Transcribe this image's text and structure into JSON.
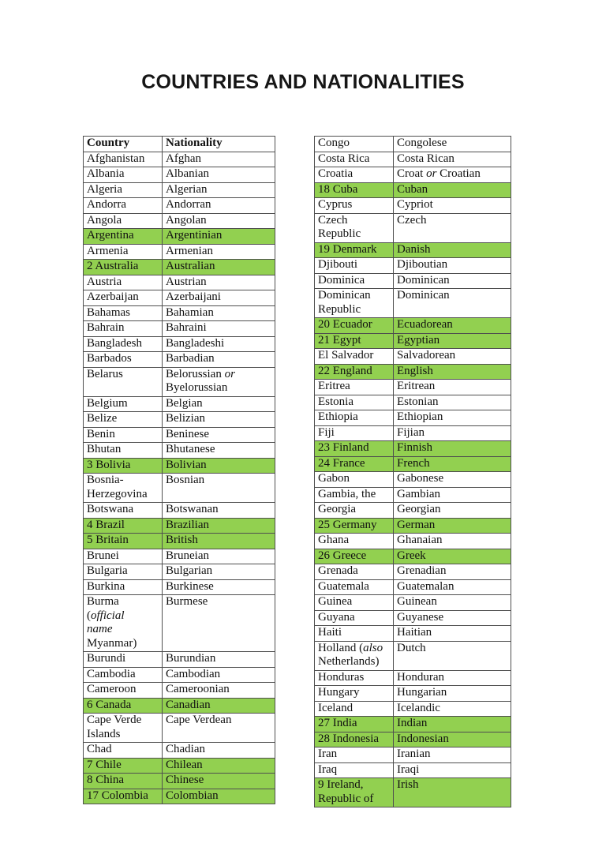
{
  "title": "COUNTRIES AND NATIONALITIES",
  "highlight_color": "#92D050",
  "left_table": {
    "headers": [
      "Country",
      "Nationality"
    ],
    "rows": [
      {
        "country": "Afghanistan",
        "nationality": "Afghan",
        "highlight": false
      },
      {
        "country": "Albania",
        "nationality": "Albanian",
        "highlight": false
      },
      {
        "country": "Algeria",
        "nationality": "Algerian",
        "highlight": false
      },
      {
        "country": "Andorra",
        "nationality": "Andorran",
        "highlight": false
      },
      {
        "country": "Angola",
        "nationality": "Angolan",
        "highlight": false
      },
      {
        "country": "Argentina",
        "nationality": "Argentinian",
        "highlight": true
      },
      {
        "country": "Armenia",
        "nationality": "Armenian",
        "highlight": false
      },
      {
        "country": "2 Australia",
        "nationality": "Australian",
        "highlight": true
      },
      {
        "country": "Austria",
        "nationality": "Austrian",
        "highlight": false
      },
      {
        "country": "Azerbaijan",
        "nationality": "Azerbaijani",
        "highlight": false
      },
      {
        "country": "Bahamas",
        "nationality": "Bahamian",
        "highlight": false
      },
      {
        "country": "Bahrain",
        "nationality": "Bahraini",
        "highlight": false
      },
      {
        "country": "Bangladesh",
        "nationality": "Bangladeshi",
        "highlight": false
      },
      {
        "country": "Barbados",
        "nationality": "Barbadian",
        "highlight": false
      },
      {
        "country": "Belarus",
        "nationality": "Belorussian *or*\nByelorussian",
        "highlight": false
      },
      {
        "country": "Belgium",
        "nationality": "Belgian",
        "highlight": false
      },
      {
        "country": "Belize",
        "nationality": "Belizian",
        "highlight": false
      },
      {
        "country": "Benin",
        "nationality": "Beninese",
        "highlight": false
      },
      {
        "country": "Bhutan",
        "nationality": "Bhutanese",
        "highlight": false
      },
      {
        "country": "3 Bolivia",
        "nationality": "Bolivian",
        "highlight": true
      },
      {
        "country": "Bosnia-\nHerzegovina",
        "nationality": "Bosnian",
        "highlight": false
      },
      {
        "country": "Botswana",
        "nationality": "Botswanan",
        "highlight": false
      },
      {
        "country": "4 Brazil",
        "nationality": "Brazilian",
        "highlight": true
      },
      {
        "country": "5 Britain",
        "nationality": "British",
        "highlight": true
      },
      {
        "country": "Brunei",
        "nationality": "Bruneian",
        "highlight": false
      },
      {
        "country": "Bulgaria",
        "nationality": "Bulgarian",
        "highlight": false
      },
      {
        "country": "Burkina",
        "nationality": "Burkinese",
        "highlight": false
      },
      {
        "country": "Burma\n(*official*\n*name*\nMyanmar)",
        "nationality": "Burmese",
        "highlight": false
      },
      {
        "country": "Burundi",
        "nationality": "Burundian",
        "highlight": false
      },
      {
        "country": "Cambodia",
        "nationality": "Cambodian",
        "highlight": false
      },
      {
        "country": "Cameroon",
        "nationality": "Cameroonian",
        "highlight": false
      },
      {
        "country": "6 Canada",
        "nationality": "Canadian",
        "highlight": true
      },
      {
        "country": "Cape Verde\nIslands",
        "nationality": "Cape Verdean",
        "highlight": false
      },
      {
        "country": "Chad",
        "nationality": "Chadian",
        "highlight": false
      },
      {
        "country": "7 Chile",
        "nationality": "Chilean",
        "highlight": true
      },
      {
        "country": "8 China",
        "nationality": "Chinese",
        "highlight": true
      },
      {
        "country": "17 Colombia",
        "nationality": "Colombian",
        "highlight": true
      }
    ]
  },
  "right_table": {
    "headers": null,
    "rows": [
      {
        "country": "Congo",
        "nationality": "Congolese",
        "highlight": false
      },
      {
        "country": "Costa Rica",
        "nationality": "Costa Rican",
        "highlight": false
      },
      {
        "country": "Croatia",
        "nationality": "Croat *or* Croatian",
        "highlight": false
      },
      {
        "country": "18 Cuba",
        "nationality": "Cuban",
        "highlight": true
      },
      {
        "country": "Cyprus",
        "nationality": "Cypriot",
        "highlight": false
      },
      {
        "country": "Czech\nRepublic",
        "nationality": "Czech",
        "highlight": false
      },
      {
        "country": "19 Denmark",
        "nationality": "Danish",
        "highlight": true
      },
      {
        "country": "Djibouti",
        "nationality": "Djiboutian",
        "highlight": false
      },
      {
        "country": "Dominica",
        "nationality": "Dominican",
        "highlight": false
      },
      {
        "country": "Dominican\nRepublic",
        "nationality": "Dominican",
        "highlight": false
      },
      {
        "country": "20 Ecuador",
        "nationality": "Ecuadorean",
        "highlight": true
      },
      {
        "country": "21 Egypt",
        "nationality": "Egyptian",
        "highlight": true
      },
      {
        "country": "El Salvador",
        "nationality": "Salvadorean",
        "highlight": false
      },
      {
        "country": "22 England",
        "nationality": "English",
        "highlight": true
      },
      {
        "country": "Eritrea",
        "nationality": "Eritrean",
        "highlight": false
      },
      {
        "country": "Estonia",
        "nationality": "Estonian",
        "highlight": false
      },
      {
        "country": "Ethiopia",
        "nationality": "Ethiopian",
        "highlight": false
      },
      {
        "country": "Fiji",
        "nationality": "Fijian",
        "highlight": false
      },
      {
        "country": "23 Finland",
        "nationality": "Finnish",
        "highlight": true
      },
      {
        "country": "24 France",
        "nationality": "French",
        "highlight": true
      },
      {
        "country": "Gabon",
        "nationality": "Gabonese",
        "highlight": false
      },
      {
        "country": "Gambia, the",
        "nationality": "Gambian",
        "highlight": false
      },
      {
        "country": "Georgia",
        "nationality": "Georgian",
        "highlight": false
      },
      {
        "country": "25 Germany",
        "nationality": "German",
        "highlight": true
      },
      {
        "country": "Ghana",
        "nationality": "Ghanaian",
        "highlight": false
      },
      {
        "country": "26 Greece",
        "nationality": "Greek",
        "highlight": true
      },
      {
        "country": "Grenada",
        "nationality": "Grenadian",
        "highlight": false
      },
      {
        "country": "Guatemala",
        "nationality": "Guatemalan",
        "highlight": false
      },
      {
        "country": "Guinea",
        "nationality": "Guinean",
        "highlight": false
      },
      {
        "country": "Guyana",
        "nationality": "Guyanese",
        "highlight": false
      },
      {
        "country": "Haiti",
        "nationality": "Haitian",
        "highlight": false
      },
      {
        "country": "Holland (*also*\nNetherlands)",
        "nationality": "Dutch",
        "highlight": false
      },
      {
        "country": "Honduras",
        "nationality": "Honduran",
        "highlight": false
      },
      {
        "country": "Hungary",
        "nationality": "Hungarian",
        "highlight": false
      },
      {
        "country": "Iceland",
        "nationality": "Icelandic",
        "highlight": false
      },
      {
        "country": "27 India",
        "nationality": "Indian",
        "highlight": true
      },
      {
        "country": "28 Indonesia",
        "nationality": "Indonesian",
        "highlight": true
      },
      {
        "country": "Iran",
        "nationality": "Iranian",
        "highlight": false
      },
      {
        "country": "Iraq",
        "nationality": "Iraqi",
        "highlight": false
      },
      {
        "country": "9 Ireland,\nRepublic of",
        "nationality": "Irish",
        "highlight": true
      }
    ]
  }
}
